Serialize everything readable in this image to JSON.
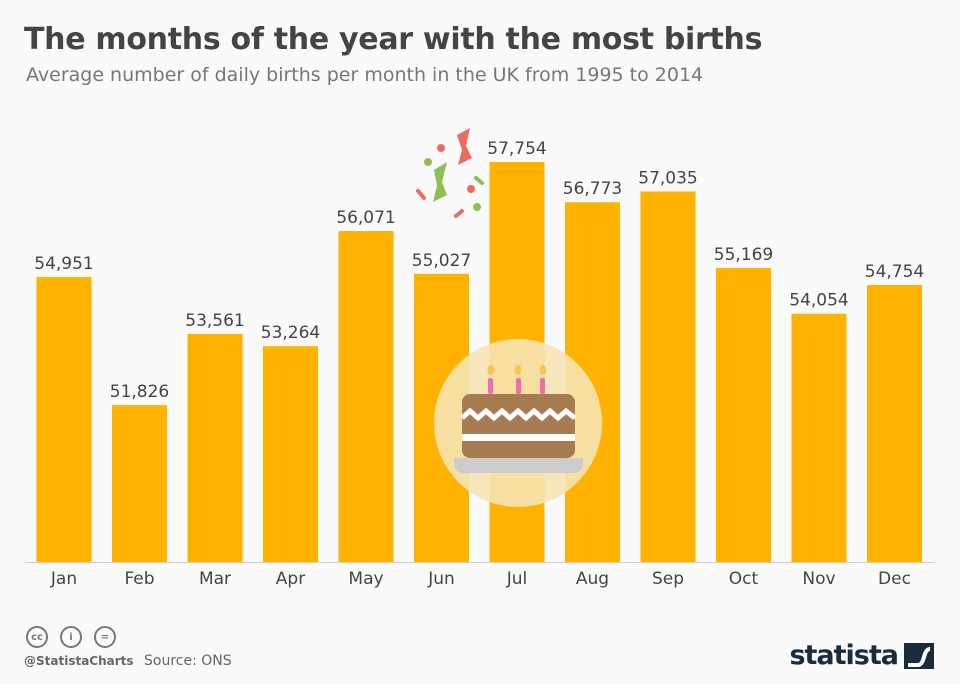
{
  "title": "The months of the year with the most births",
  "subtitle": "Average number of daily births per month in the UK from 1995 to 2014",
  "chart_data": {
    "type": "bar",
    "categories": [
      "Jan",
      "Feb",
      "Mar",
      "Apr",
      "May",
      "Jun",
      "Jul",
      "Aug",
      "Sep",
      "Oct",
      "Nov",
      "Dec"
    ],
    "values": [
      54951,
      51826,
      53561,
      53264,
      56071,
      55027,
      57754,
      56773,
      57035,
      55169,
      54054,
      54754
    ],
    "labels": [
      "54,951",
      "51,826",
      "53,561",
      "53,264",
      "56,071",
      "55,027",
      "57,754",
      "56,773",
      "57,035",
      "55,169",
      "54,054",
      "54,754"
    ],
    "ylim": [
      48000,
      59000
    ],
    "grid": false,
    "bar_color": "#FFB300",
    "decorations": [
      "confetti-icon",
      "birthday-cake-icon"
    ]
  },
  "footer": {
    "handle": "@StatistaCharts",
    "source": "Source: ONS",
    "brand": "statista",
    "license_icons": [
      "cc-icon",
      "attribution-icon",
      "no-derivatives-icon"
    ]
  }
}
